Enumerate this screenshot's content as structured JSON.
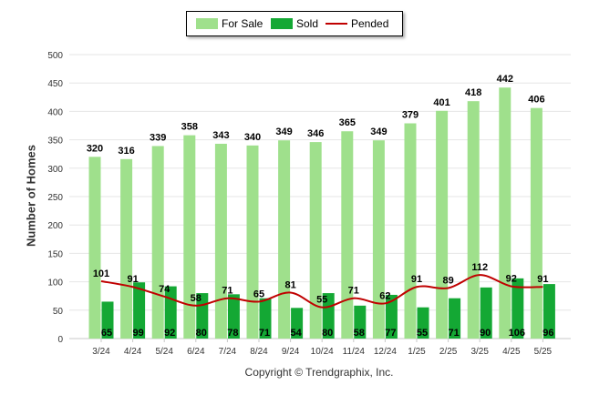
{
  "legend": {
    "for_sale": "For Sale",
    "sold": "Sold",
    "pended": "Pended"
  },
  "copyright": "Copyright © Trendgraphix, Inc.",
  "colors": {
    "for_sale": "#9fe08c",
    "sold": "#14a834",
    "pended": "#c00000",
    "grid": "#e6e6e6",
    "axis_text": "#333333"
  },
  "chart_data": {
    "type": "bar",
    "ylabel": "Number of Homes",
    "xlabel": "",
    "ylim": [
      0,
      500
    ],
    "yticks": [
      0,
      50,
      100,
      150,
      200,
      250,
      300,
      350,
      400,
      450,
      500
    ],
    "grid": true,
    "legend_position": "top-center",
    "categories": [
      "3/24",
      "4/24",
      "5/24",
      "6/24",
      "7/24",
      "8/24",
      "9/24",
      "10/24",
      "11/24",
      "12/24",
      "1/25",
      "2/25",
      "3/25",
      "4/25",
      "5/25"
    ],
    "series": [
      {
        "name": "For Sale",
        "type": "bar",
        "values": [
          320,
          316,
          339,
          358,
          343,
          340,
          349,
          346,
          365,
          349,
          379,
          401,
          418,
          442,
          406
        ]
      },
      {
        "name": "Sold",
        "type": "bar",
        "values": [
          65,
          99,
          92,
          80,
          78,
          71,
          54,
          80,
          58,
          77,
          55,
          71,
          90,
          106,
          96
        ]
      },
      {
        "name": "Pended",
        "type": "line",
        "values": [
          101,
          91,
          74,
          58,
          71,
          65,
          81,
          55,
          71,
          62,
          91,
          89,
          112,
          92,
          91
        ]
      }
    ]
  }
}
